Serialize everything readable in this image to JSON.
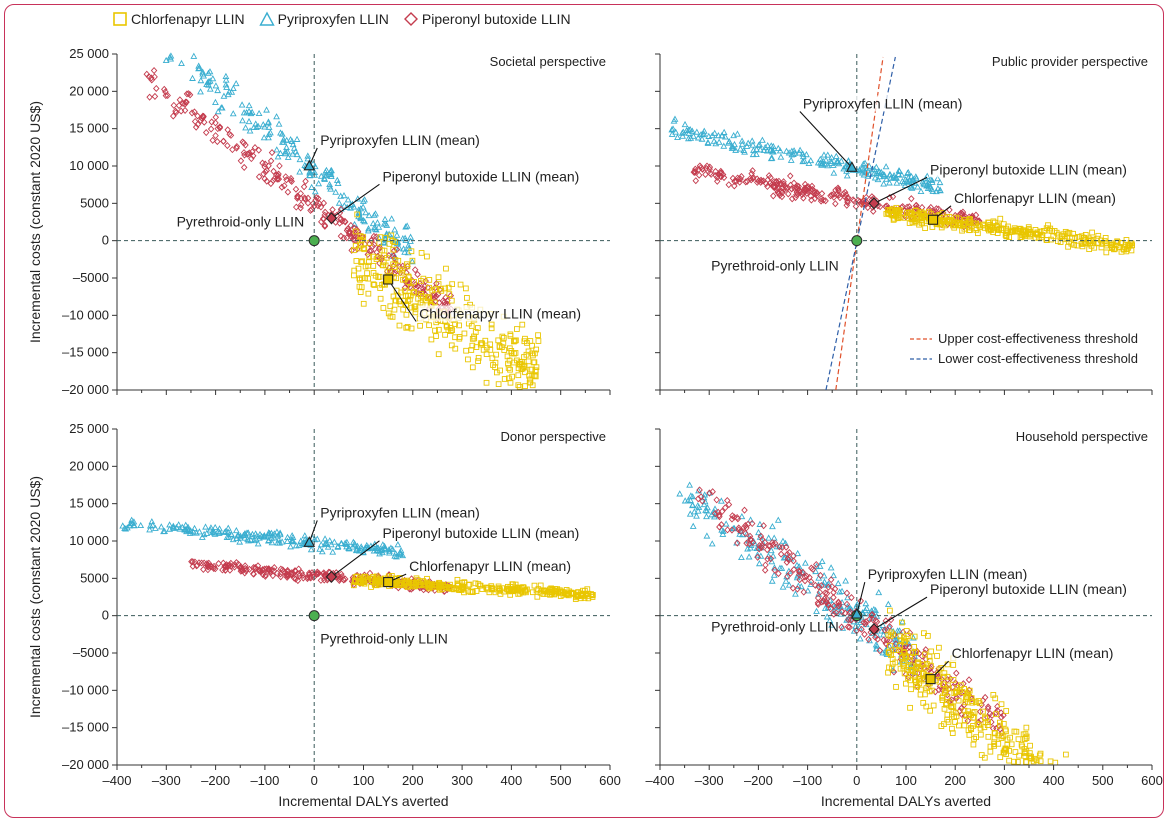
{
  "chart_data": [
    {
      "type": "scatter",
      "title": "Societal perspective",
      "xlabel": "",
      "ylabel": "Incremental costs (constant 2020 US$)",
      "xlim": [
        -400,
        600
      ],
      "ylim": [
        -20000,
        25000
      ],
      "grid": false,
      "reference": {
        "label": "Pyrethroid-only LLIN",
        "x": 0,
        "y": 0
      },
      "series": [
        {
          "name": "Chlorfenapyr LLIN",
          "marker": "square",
          "color": "#e9c600",
          "mean": {
            "x": 150,
            "y": -5200
          },
          "mean_label": "Chlorfenapyr LLIN (mean)",
          "cloud": {
            "xmin": 80,
            "xmax": 460,
            "slope": -40,
            "spread": 3600
          }
        },
        {
          "name": "Pyriproxyfen LLIN",
          "marker": "triangle",
          "color": "#3aaed0",
          "mean": {
            "x": -10,
            "y": 10000
          },
          "mean_label": "Pyriproxyfen LLIN (mean)",
          "cloud": {
            "xmin": -380,
            "xmax": 200,
            "slope": -55,
            "spread": 1800
          }
        },
        {
          "name": "Piperonyl butoxide LLIN",
          "marker": "diamond",
          "color": "#c43c4e",
          "mean": {
            "x": 35,
            "y": 3000
          },
          "mean_label": "Piperonyl butoxide LLIN (mean)",
          "cloud": {
            "xmin": -340,
            "xmax": 280,
            "slope": -50,
            "spread": 1500
          }
        }
      ]
    },
    {
      "type": "scatter",
      "title": "Public provider perspective",
      "xlabel": "",
      "ylabel": "",
      "xlim": [
        -400,
        600
      ],
      "ylim": [
        -20000,
        25000
      ],
      "grid": false,
      "reference": {
        "label": "Pyrethroid-only LLIN",
        "x": 0,
        "y": 0
      },
      "series": [
        {
          "name": "Chlorfenapyr LLIN",
          "marker": "square",
          "color": "#e9c600",
          "mean": {
            "x": 155,
            "y": 2800
          },
          "mean_label": "Chlorfenapyr LLIN (mean)",
          "cloud": {
            "xmin": 60,
            "xmax": 560,
            "slope": -9,
            "spread": 700
          }
        },
        {
          "name": "Pyriproxyfen LLIN",
          "marker": "triangle",
          "color": "#3aaed0",
          "mean": {
            "x": -10,
            "y": 9800
          },
          "mean_label": "Pyriproxyfen LLIN (mean)",
          "cloud": {
            "xmin": -380,
            "xmax": 170,
            "slope": -14,
            "spread": 900
          }
        },
        {
          "name": "Piperonyl butoxide LLIN",
          "marker": "diamond",
          "color": "#c43c4e",
          "mean": {
            "x": 35,
            "y": 5000
          },
          "mean_label": "Piperonyl butoxide LLIN (mean)",
          "cloud": {
            "xmin": -340,
            "xmax": 250,
            "slope": -12,
            "spread": 800
          }
        }
      ],
      "thresholds": [
        {
          "name": "Upper cost-effectiveness threshold",
          "color": "#e0502a",
          "slope": 468
        },
        {
          "name": "Lower cost-effectiveness threshold",
          "color": "#2f5fa8",
          "slope": 319
        }
      ]
    },
    {
      "type": "scatter",
      "title": "Donor perspective",
      "xlabel": "Incremental DALYs averted",
      "ylabel": "Incremental costs (constant 2020 US$)",
      "xlim": [
        -400,
        600
      ],
      "ylim": [
        -20000,
        25000
      ],
      "grid": false,
      "reference": {
        "label": "Pyrethroid-only LLIN",
        "x": 0,
        "y": 0
      },
      "series": [
        {
          "name": "Chlorfenapyr LLIN",
          "marker": "square",
          "color": "#e9c600",
          "mean": {
            "x": 150,
            "y": 4500
          },
          "mean_label": "Chlorfenapyr LLIN (mean)",
          "cloud": {
            "xmin": 80,
            "xmax": 570,
            "slope": -4,
            "spread": 500
          }
        },
        {
          "name": "Pyriproxyfen LLIN",
          "marker": "triangle",
          "color": "#3aaed0",
          "mean": {
            "x": -10,
            "y": 9800
          },
          "mean_label": "Pyriproxyfen LLIN (mean)",
          "cloud": {
            "xmin": -390,
            "xmax": 180,
            "slope": -7,
            "spread": 600
          }
        },
        {
          "name": "Piperonyl butoxide LLIN",
          "marker": "diamond",
          "color": "#c43c4e",
          "mean": {
            "x": 35,
            "y": 5200
          },
          "mean_label": "Piperonyl butoxide LLIN (mean)",
          "cloud": {
            "xmin": -250,
            "xmax": 280,
            "slope": -6,
            "spread": 500
          }
        }
      ]
    },
    {
      "type": "scatter",
      "title": "Household perspective",
      "xlabel": "Incremental DALYs averted",
      "ylabel": "",
      "xlim": [
        -400,
        600
      ],
      "ylim": [
        -20000,
        25000
      ],
      "grid": false,
      "reference": {
        "label": "Pyrethroid-only LLIN",
        "x": 0,
        "y": 0
      },
      "series": [
        {
          "name": "Chlorfenapyr LLIN",
          "marker": "square",
          "color": "#e9c600",
          "mean": {
            "x": 150,
            "y": -8500
          },
          "mean_label": "Chlorfenapyr LLIN (mean)",
          "cloud": {
            "xmin": 60,
            "xmax": 430,
            "slope": -55,
            "spread": 3200
          }
        },
        {
          "name": "Pyriproxyfen LLIN",
          "marker": "triangle",
          "color": "#3aaed0",
          "mean": {
            "x": 0,
            "y": 200
          },
          "mean_label": "Pyriproxyfen LLIN (mean)",
          "cloud": {
            "xmin": -360,
            "xmax": 120,
            "slope": -45,
            "spread": 2600
          }
        },
        {
          "name": "Piperonyl butoxide LLIN",
          "marker": "diamond",
          "color": "#c43c4e",
          "mean": {
            "x": 35,
            "y": -1800
          },
          "mean_label": "Piperonyl butoxide LLIN (mean)",
          "cloud": {
            "xmin": -330,
            "xmax": 300,
            "slope": -50,
            "spread": 2000
          }
        }
      ]
    }
  ],
  "ticks": {
    "x": [
      "–400",
      "–300",
      "–200",
      "–100",
      "0",
      "100",
      "200",
      "300",
      "400",
      "500",
      "600"
    ],
    "y": [
      "25 000",
      "20 000",
      "15 000",
      "10 000",
      "5000",
      "0",
      "–5000",
      "–10 000",
      "–15 000",
      "–20 000"
    ]
  },
  "colors": {
    "frame": "#c8325a",
    "reference": "#4caf50",
    "dashed": "#3a5a5a"
  }
}
